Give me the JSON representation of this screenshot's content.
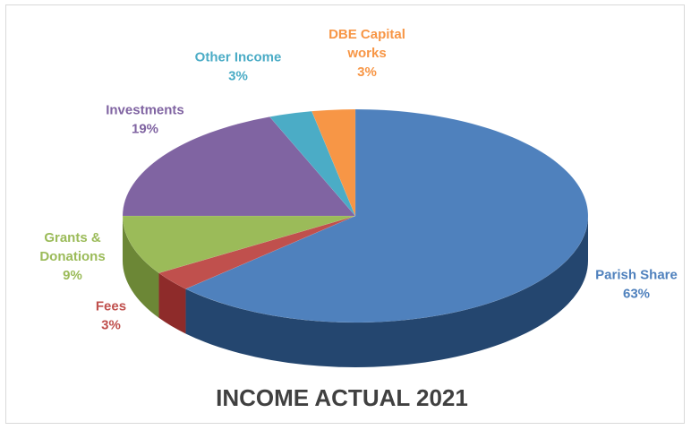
{
  "chart_data": {
    "type": "pie",
    "title": "INCOME ACTUAL 2021",
    "slices": [
      {
        "name": "Parish Share",
        "label_lines": [
          "Parish Share"
        ],
        "percent_label": "63%",
        "value": 63,
        "color": "#4f81bd",
        "side_color": "#24466f"
      },
      {
        "name": "Fees",
        "label_lines": [
          "Fees"
        ],
        "percent_label": "3%",
        "value": 3,
        "color": "#c0504d",
        "side_color": "#8e2b2a"
      },
      {
        "name": "Grants & Donations",
        "label_lines": [
          "Grants &",
          "Donations"
        ],
        "percent_label": "9%",
        "value": 9,
        "color": "#9bbb59",
        "side_color": "#6c8736"
      },
      {
        "name": "Investments",
        "label_lines": [
          "Investments"
        ],
        "percent_label": "19%",
        "value": 19,
        "color": "#8064a2",
        "side_color": "#563f72"
      },
      {
        "name": "Other Income",
        "label_lines": [
          "Other Income"
        ],
        "percent_label": "3%",
        "value": 3,
        "color": "#4bacc6",
        "side_color": "#2a7d94"
      },
      {
        "name": "DBE Capital works",
        "label_lines": [
          "DBE Capital",
          "works"
        ],
        "percent_label": "3%",
        "value": 3,
        "color": "#f79646",
        "side_color": "#b8682a"
      }
    ]
  }
}
